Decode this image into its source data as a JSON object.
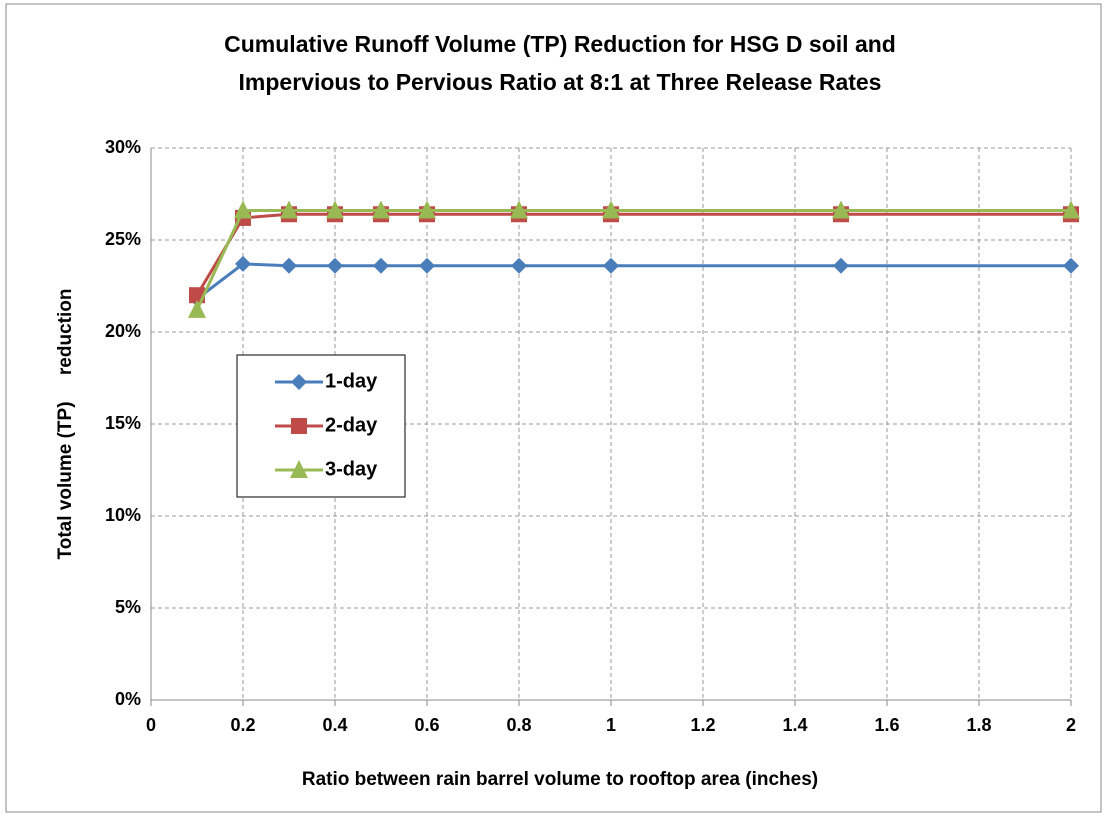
{
  "chart_data": {
    "type": "line",
    "title": [
      "Cumulative Runoff Volume (TP) Reduction for HSG D soil  and",
      "Impervious to Pervious Ratio at 8:1 at Three Release Rates"
    ],
    "xlabel": "Ratio between rain barrel volume to rooftop area (inches)",
    "ylabel": "Total volume (TP)     reduction",
    "x": [
      0.1,
      0.2,
      0.3,
      0.4,
      0.5,
      0.6,
      0.8,
      1,
      1.5,
      2
    ],
    "series": [
      {
        "name": "1-day",
        "color": "#4a7ebb",
        "marker": "diamond",
        "values": [
          21.8,
          23.7,
          23.6,
          23.6,
          23.6,
          23.6,
          23.6,
          23.6,
          23.6,
          23.6
        ]
      },
      {
        "name": "2-day",
        "color": "#be4b48",
        "marker": "square",
        "values": [
          22.0,
          26.2,
          26.4,
          26.4,
          26.4,
          26.4,
          26.4,
          26.4,
          26.4,
          26.4
        ]
      },
      {
        "name": "3-day",
        "color": "#98b954",
        "marker": "triangle",
        "values": [
          21.2,
          26.6,
          26.6,
          26.6,
          26.6,
          26.6,
          26.6,
          26.6,
          26.6,
          26.6
        ]
      }
    ],
    "xlim": [
      0,
      2
    ],
    "xticks": [
      0,
      0.2,
      0.4,
      0.6,
      0.8,
      1,
      1.2,
      1.4,
      1.6,
      1.8,
      2
    ],
    "ylim": [
      0,
      30
    ],
    "yticks": [
      {
        "value": 0,
        "label": "0%"
      },
      {
        "value": 5,
        "label": "5%"
      },
      {
        "value": 10,
        "label": "10%"
      },
      {
        "value": 15,
        "label": "15%"
      },
      {
        "value": 20,
        "label": "20%"
      },
      {
        "value": 25,
        "label": "25%"
      },
      {
        "value": 30,
        "label": "30%"
      }
    ],
    "grid": true
  }
}
